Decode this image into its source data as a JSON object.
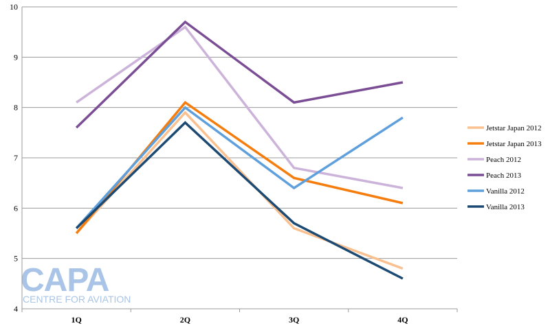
{
  "chart_data": {
    "type": "line",
    "categories": [
      "1Q",
      "2Q",
      "3Q",
      "4Q"
    ],
    "ylim": [
      4,
      10
    ],
    "yticks": [
      4,
      5,
      6,
      7,
      8,
      9,
      10
    ],
    "grid": true,
    "legend_position": "right",
    "series": [
      {
        "name": "Jetstar Japan 2012",
        "color": "#fac090",
        "values": [
          5.5,
          7.9,
          5.6,
          4.8
        ]
      },
      {
        "name": "Jetstar Japan 2013",
        "color": "#f47d0e",
        "values": [
          5.5,
          8.1,
          6.6,
          6.1
        ]
      },
      {
        "name": "Peach 2012",
        "color": "#ccb3da",
        "values": [
          8.1,
          9.6,
          6.8,
          6.4
        ]
      },
      {
        "name": "Peach 2013",
        "color": "#7a4d94",
        "values": [
          7.6,
          9.7,
          8.1,
          8.5
        ]
      },
      {
        "name": "Vanilla 2012",
        "color": "#5fa0dc",
        "values": [
          5.6,
          8.0,
          6.4,
          7.8
        ]
      },
      {
        "name": "Vanilla 2013",
        "color": "#1c4a73",
        "values": [
          5.6,
          7.7,
          5.7,
          4.6
        ]
      }
    ]
  },
  "logo": {
    "main": "CAPA",
    "sub": "CENTRE FOR AVIATION"
  }
}
